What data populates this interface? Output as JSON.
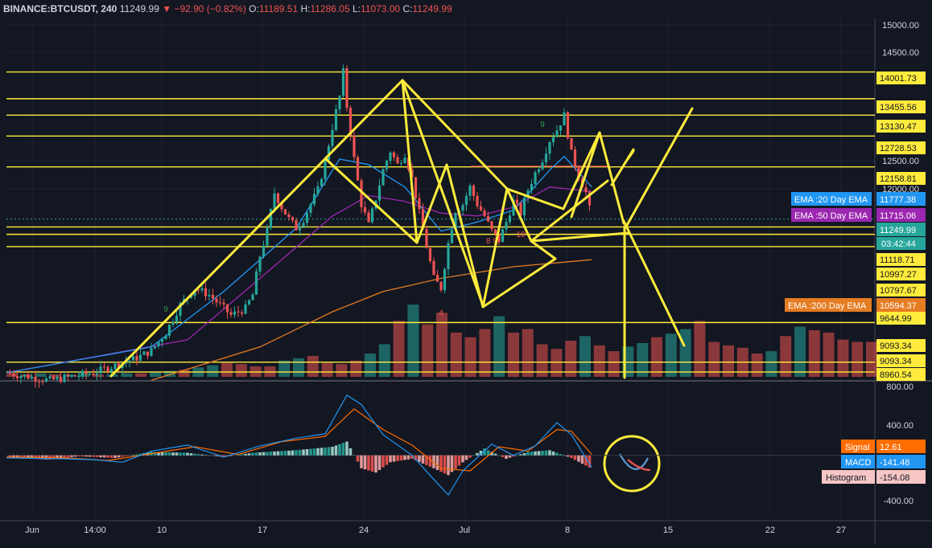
{
  "header": {
    "symbol": "BINANCE:BTCUSDT, 240",
    "price": "11249.99",
    "change": "▼ −92.90 (−0.82%)",
    "o_label": "O:",
    "o_value": "11189.51",
    "h_label": "H:",
    "h_value": "11286.05",
    "l_label": "L:",
    "l_value": "11073.00",
    "c_label": "C:",
    "c_value": "11249.99"
  },
  "colors": {
    "background": "#131722",
    "up": "#26a69a",
    "down": "#ef5350",
    "drawing": "#ffeb3b",
    "ema20": "#2196f3",
    "ema50": "#9c27b0",
    "ema200": "#e57c22",
    "macd": "#2196f3",
    "signal": "#ff6d00"
  },
  "chart_data": [
    {
      "type": "candlestick",
      "title": "BINANCE:BTCUSDT, 240",
      "xlabel": "",
      "ylabel": "",
      "x_ticks": [
        "Jun",
        "14:00",
        "10",
        "17",
        "24",
        "Jul",
        "8",
        "15",
        "22",
        "27"
      ],
      "y_ticks": [
        "15000.00",
        "14500.00",
        "12500.00",
        "12000.00"
      ],
      "ylim": [
        8960,
        15000
      ],
      "scale": "log",
      "last_price": 11249.99,
      "countdown": "03:42:44",
      "price_path": [
        [
          0,
          8950
        ],
        [
          3,
          8900
        ],
        [
          6,
          8850
        ],
        [
          9,
          8900
        ],
        [
          12,
          8950
        ],
        [
          15,
          9050
        ],
        [
          18,
          9150
        ],
        [
          20,
          9250
        ],
        [
          22,
          9500
        ],
        [
          24,
          9900
        ],
        [
          26,
          10150
        ],
        [
          28,
          10050
        ],
        [
          30,
          9850
        ],
        [
          31,
          9750
        ],
        [
          33,
          9850
        ],
        [
          34,
          10050
        ],
        [
          35,
          10650
        ],
        [
          36,
          11050
        ],
        [
          37,
          11700
        ],
        [
          38,
          11450
        ],
        [
          39,
          11250
        ],
        [
          40,
          11100
        ],
        [
          41,
          11250
        ],
        [
          42,
          11500
        ],
        [
          43,
          11750
        ],
        [
          44,
          12250
        ],
        [
          45,
          12900
        ],
        [
          46,
          13500
        ],
        [
          46.5,
          14000
        ],
        [
          47,
          13300
        ],
        [
          48,
          12300
        ],
        [
          49,
          11500
        ],
        [
          50,
          11150
        ],
        [
          51,
          11600
        ],
        [
          52,
          12100
        ],
        [
          53,
          12450
        ],
        [
          54,
          12200
        ],
        [
          55,
          12400
        ],
        [
          56,
          11950
        ],
        [
          57,
          11350
        ],
        [
          58,
          10800
        ],
        [
          59,
          10300
        ],
        [
          60,
          10150
        ],
        [
          61,
          10850
        ],
        [
          62,
          11400
        ],
        [
          63,
          11500
        ],
        [
          64,
          11800
        ],
        [
          65,
          11500
        ],
        [
          66,
          11300
        ],
        [
          67,
          11050
        ],
        [
          68,
          10900
        ],
        [
          69,
          11200
        ],
        [
          70,
          11550
        ],
        [
          71,
          11350
        ],
        [
          72,
          11750
        ],
        [
          73,
          12050
        ],
        [
          74,
          12300
        ],
        [
          75,
          12650
        ],
        [
          76,
          12850
        ],
        [
          77,
          13130
        ],
        [
          78,
          12400
        ],
        [
          79,
          12000
        ],
        [
          80,
          11700
        ],
        [
          80.8,
          11250
        ]
      ],
      "ema": [
        {
          "name": "EMA :20 Day EMA",
          "value": "11777.38"
        },
        {
          "name": "EMA :50 Day EMA",
          "value": "11715.06"
        },
        {
          "name": "EMA :200 Day EMA",
          "value": "10594.37"
        }
      ],
      "ema20_path": [
        [
          0,
          8950
        ],
        [
          20,
          9300
        ],
        [
          30,
          10100
        ],
        [
          40,
          11100
        ],
        [
          46,
          12300
        ],
        [
          50,
          12200
        ],
        [
          55,
          11800
        ],
        [
          60,
          11050
        ],
        [
          65,
          11200
        ],
        [
          70,
          11400
        ],
        [
          75,
          12100
        ],
        [
          77,
          12350
        ],
        [
          80.8,
          11800
        ]
      ],
      "ema50_path": [
        [
          0,
          8950
        ],
        [
          25,
          9400
        ],
        [
          35,
          10300
        ],
        [
          45,
          11300
        ],
        [
          50,
          11650
        ],
        [
          55,
          11550
        ],
        [
          60,
          11350
        ],
        [
          65,
          11300
        ],
        [
          70,
          11450
        ],
        [
          75,
          11800
        ],
        [
          80.8,
          11720
        ]
      ],
      "ema200_path": [
        [
          20,
          8850
        ],
        [
          35,
          9300
        ],
        [
          45,
          9800
        ],
        [
          52,
          10100
        ],
        [
          60,
          10300
        ],
        [
          70,
          10480
        ],
        [
          80.8,
          10590
        ]
      ],
      "price_levels": [
        "14001.73",
        "13455.56",
        "13130.47",
        "12728.53",
        "12158.81",
        "11118.71",
        "10997.27",
        "10797.67",
        "9644.99",
        "9093.34",
        "9093.34",
        "8960.54"
      ],
      "price_level_values": [
        14001.73,
        13455.56,
        13130.47,
        12728.53,
        12158.81,
        11118.71,
        10997.27,
        10797.67,
        9644.99,
        9093.34,
        8960.54
      ],
      "td_labels": [
        {
          "text": "9",
          "color": "green",
          "pos": [
            22,
            9800
          ]
        },
        {
          "text": "9",
          "color": "green",
          "pos": [
            74,
            12900
          ]
        },
        {
          "text": "8 9",
          "color": "red",
          "pos": [
            67,
            10850
          ]
        },
        {
          "text": "10",
          "color": "red",
          "pos": [
            71,
            10950
          ]
        },
        {
          "text": "4",
          "color": "red",
          "pos": [
            60,
            9750
          ]
        }
      ]
    },
    {
      "type": "bar",
      "title": "",
      "xlabel": "",
      "ylabel": "",
      "series": [
        {
          "values": [
            3,
            2,
            3,
            2,
            2,
            3,
            2,
            2,
            3,
            3,
            4,
            5,
            6,
            8,
            10,
            12,
            11,
            9,
            9,
            14,
            16,
            18,
            12,
            11,
            14,
            20,
            28,
            48,
            62,
            45,
            55,
            38,
            34,
            41,
            52,
            38,
            41,
            28,
            24,
            31,
            35,
            27,
            22,
            26,
            29,
            34,
            37,
            41,
            48,
            30,
            27,
            25,
            20,
            22,
            35,
            43,
            40,
            38,
            32,
            30,
            30
          ]
        }
      ]
    },
    {
      "type": "area",
      "title": "",
      "xlabel": "",
      "ylabel": "",
      "y_ticks": [
        "800.00",
        "400.00",
        "-400.00"
      ],
      "ylim": [
        -530,
        800
      ],
      "values_shown": [
        {
          "name": "Signal",
          "value": "12.61"
        },
        {
          "name": "MACD",
          "value": "-141.48"
        },
        {
          "name": "Histogram",
          "value": "-154.08"
        }
      ],
      "macd_path": [
        [
          0,
          -30
        ],
        [
          8,
          -40
        ],
        [
          12,
          -50
        ],
        [
          16,
          -80
        ],
        [
          20,
          50
        ],
        [
          25,
          120
        ],
        [
          30,
          -20
        ],
        [
          35,
          110
        ],
        [
          40,
          200
        ],
        [
          44,
          250
        ],
        [
          47,
          700
        ],
        [
          49,
          590
        ],
        [
          52,
          240
        ],
        [
          56,
          0
        ],
        [
          59,
          -280
        ],
        [
          61,
          -460
        ],
        [
          63,
          -180
        ],
        [
          67,
          130
        ],
        [
          70,
          0
        ],
        [
          73,
          110
        ],
        [
          76,
          380
        ],
        [
          78,
          240
        ],
        [
          80.8,
          -141
        ]
      ],
      "signal_path": [
        [
          0,
          -20
        ],
        [
          8,
          -30
        ],
        [
          14,
          -60
        ],
        [
          20,
          20
        ],
        [
          26,
          100
        ],
        [
          32,
          10
        ],
        [
          38,
          160
        ],
        [
          44,
          220
        ],
        [
          48,
          540
        ],
        [
          52,
          300
        ],
        [
          56,
          120
        ],
        [
          60,
          -150
        ],
        [
          64,
          -180
        ],
        [
          68,
          100
        ],
        [
          72,
          50
        ],
        [
          76,
          300
        ],
        [
          78,
          280
        ],
        [
          80.8,
          12.6
        ]
      ],
      "hist_path": [
        [
          0,
          -20
        ],
        [
          6,
          -50
        ],
        [
          10,
          -10
        ],
        [
          15,
          -30
        ],
        [
          20,
          40
        ],
        [
          25,
          30
        ],
        [
          30,
          -20
        ],
        [
          34,
          30
        ],
        [
          40,
          60
        ],
        [
          45,
          100
        ],
        [
          47,
          160
        ],
        [
          49,
          -150
        ],
        [
          51,
          -200
        ],
        [
          53,
          -80
        ],
        [
          56,
          -40
        ],
        [
          59,
          -150
        ],
        [
          61,
          -230
        ],
        [
          63,
          -80
        ],
        [
          66,
          80
        ],
        [
          69,
          -40
        ],
        [
          72,
          40
        ],
        [
          75,
          60
        ],
        [
          78,
          -30
        ],
        [
          80.8,
          -154
        ]
      ]
    }
  ]
}
